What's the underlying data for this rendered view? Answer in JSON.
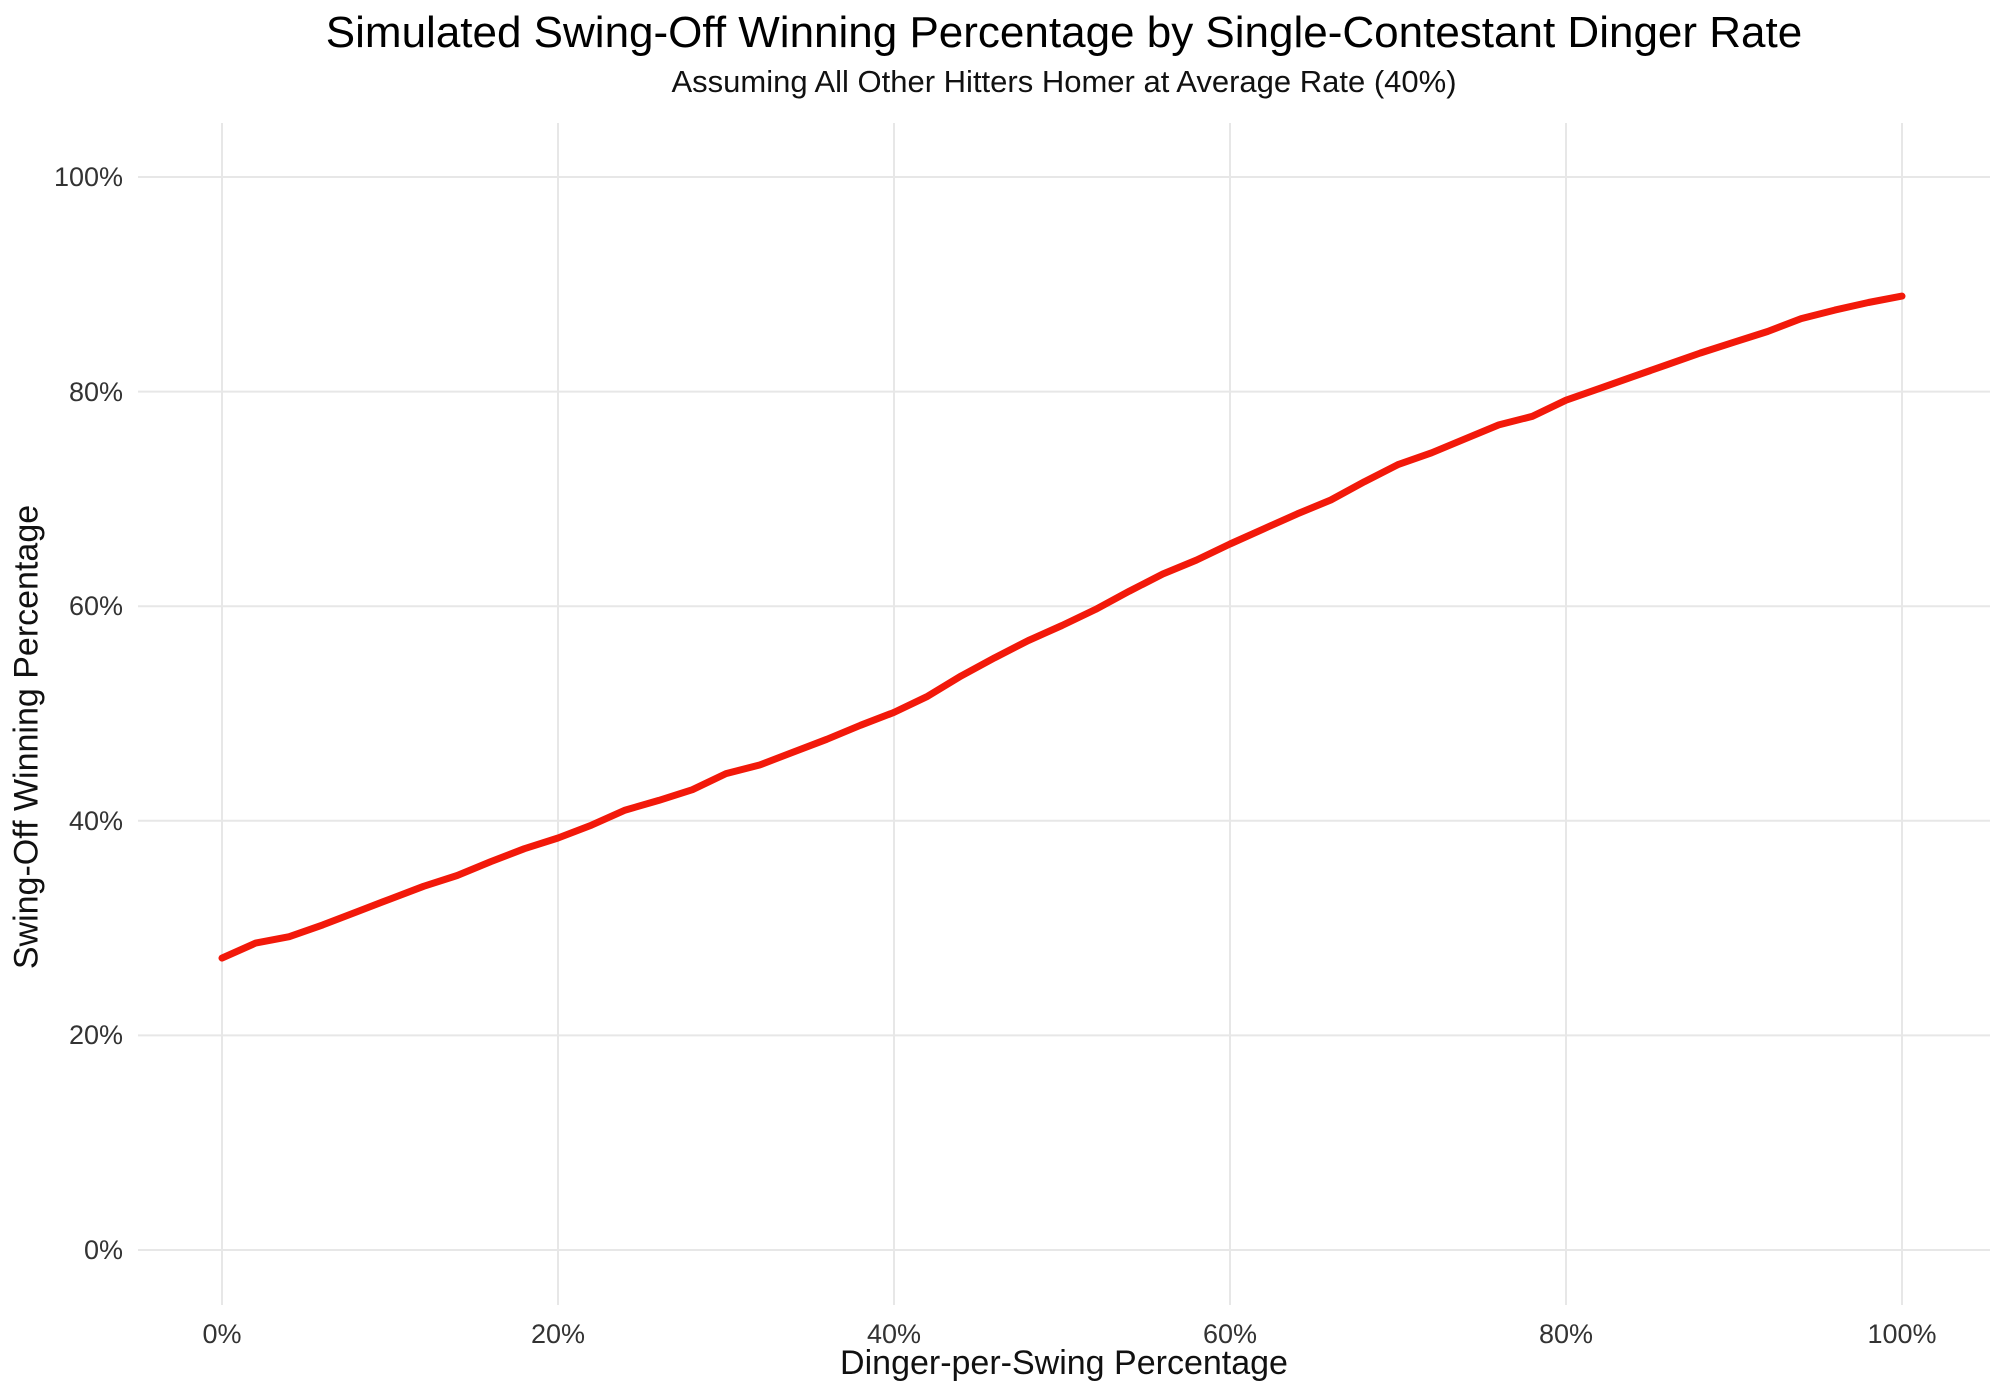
{
  "header": {
    "title": "Simulated Swing-Off Winning Percentage by Single-Contestant Dinger Rate",
    "subtitle": "Assuming All Other Hitters Homer at Average Rate (40%)"
  },
  "colors": {
    "line": "#F2190A",
    "grid": "#E7E7E7",
    "title_text": "#000000",
    "tick_text": "#333333",
    "background": "#FFFFFF"
  },
  "chart_data": {
    "type": "line",
    "title": "Simulated Swing-Off Winning Percentage by Single-Contestant Dinger Rate",
    "subtitle": "Assuming All Other Hitters Homer at Average Rate (40%)",
    "xlabel": "Dinger-per-Swing Percentage",
    "ylabel": "Swing-Off Winning Percentage",
    "x_tick_labels": [
      "0%",
      "20%",
      "40%",
      "60%",
      "80%",
      "100%"
    ],
    "y_tick_labels": [
      "0%",
      "20%",
      "40%",
      "60%",
      "80%",
      "100%"
    ],
    "x_tick_values": [
      0,
      20,
      40,
      60,
      80,
      100
    ],
    "y_tick_values": [
      0,
      20,
      40,
      60,
      80,
      100
    ],
    "xlim": [
      -5,
      105
    ],
    "ylim": [
      -5,
      105
    ],
    "grid": "major-only",
    "legend": "none",
    "line_color": "#F2190A",
    "line_width": 7,
    "series": [
      {
        "name": "swing_off_win_pct",
        "x": [
          0,
          2,
          4,
          6,
          8,
          10,
          12,
          14,
          16,
          18,
          20,
          22,
          24,
          26,
          28,
          30,
          32,
          34,
          36,
          38,
          40,
          42,
          44,
          46,
          48,
          50,
          52,
          54,
          56,
          58,
          60,
          62,
          64,
          66,
          68,
          70,
          72,
          74,
          76,
          78,
          80,
          82,
          84,
          86,
          88,
          90,
          92,
          94,
          96,
          98,
          100
        ],
        "y": [
          27.2,
          28.6,
          29.2,
          30.3,
          31.5,
          32.7,
          33.9,
          34.9,
          36.2,
          37.4,
          38.4,
          39.6,
          41.0,
          41.9,
          42.9,
          44.4,
          45.2,
          46.4,
          47.6,
          48.9,
          50.1,
          51.6,
          53.5,
          55.2,
          56.8,
          58.2,
          59.7,
          61.4,
          63.0,
          64.3,
          65.8,
          67.2,
          68.6,
          69.9,
          71.6,
          73.2,
          74.3,
          75.6,
          76.9,
          77.7,
          79.2,
          80.3,
          81.4,
          82.5,
          83.6,
          84.6,
          85.6,
          86.8,
          87.6,
          88.3,
          88.9
        ]
      }
    ]
  }
}
